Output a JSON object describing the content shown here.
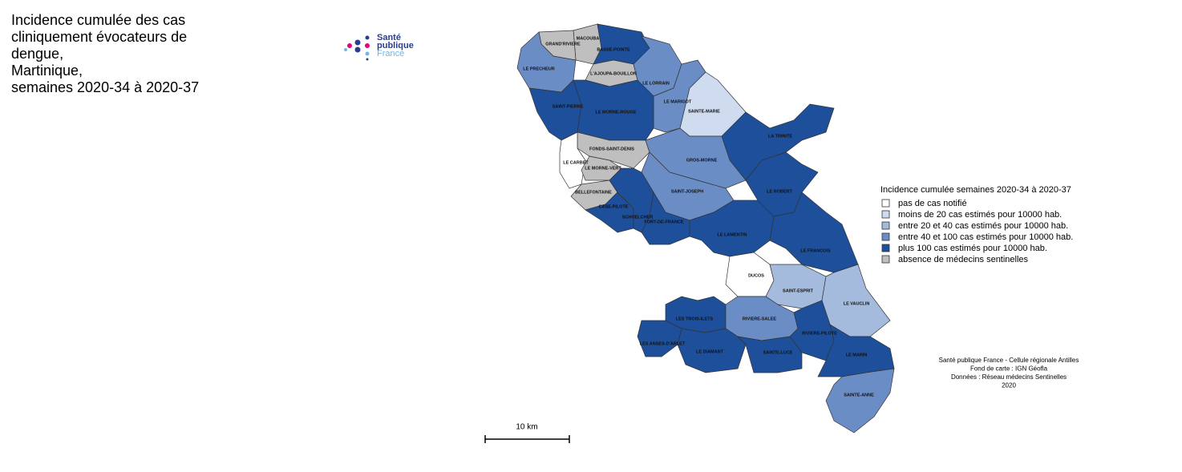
{
  "title_lines": [
    "Incidence cumulée des cas",
    "cliniquement évocateurs de",
    "dengue,",
    "Martinique,",
    "semaines 2020-34 à 2020-37"
  ],
  "logo": {
    "lines": [
      "Santé",
      "publique",
      "France"
    ]
  },
  "map": {
    "regions": [
      {
        "label": "MACOUBA",
        "color": "#bfbfbf"
      },
      {
        "label": "GRAND'RIVIERE",
        "color": "#bfbfbf"
      },
      {
        "label": "BASSE-POINTE",
        "color": "#1d4f9b"
      },
      {
        "label": "LE PRECHEUR",
        "color": "#6b8dc6"
      },
      {
        "label": "L'AJOUPA-BOUILLON",
        "color": "#bfbfbf"
      },
      {
        "label": "LE LORRAIN",
        "color": "#6b8dc6"
      },
      {
        "label": "LE MARIGOT",
        "color": "#6b8dc6"
      },
      {
        "label": "SAINTE-MARIE",
        "color": "#cfdbee"
      },
      {
        "label": "SAINT-PIERRE",
        "color": "#1d4f9b"
      },
      {
        "label": "LE MORNE-ROUGE",
        "color": "#1d4f9b"
      },
      {
        "label": "LA TRINITE",
        "color": "#1d4f9b"
      },
      {
        "label": "FONDS-SAINT-DENIS",
        "color": "#bfbfbf"
      },
      {
        "label": "LE CARBET",
        "color": "#ffffff"
      },
      {
        "label": "LE MORNE-VERT",
        "color": "#bfbfbf"
      },
      {
        "label": "GROS-MORNE",
        "color": "#6b8dc6"
      },
      {
        "label": "BELLEFONTAINE",
        "color": "#bfbfbf"
      },
      {
        "label": "LE ROBERT",
        "color": "#1d4f9b"
      },
      {
        "label": "SAINT-JOSEPH",
        "color": "#6b8dc6"
      },
      {
        "label": "CASE-PILOTE",
        "color": "#1d4f9b"
      },
      {
        "label": "SCHOELCHER",
        "color": "#1d4f9b"
      },
      {
        "label": "FORT-DE-FRANCE",
        "color": "#1d4f9b"
      },
      {
        "label": "LE LAMENTIN",
        "color": "#1d4f9b"
      },
      {
        "label": "LE FRANCOIS",
        "color": "#1d4f9b"
      },
      {
        "label": "DUCOS",
        "color": "#ffffff"
      },
      {
        "label": "SAINT-ESPRIT",
        "color": "#a4bbdd"
      },
      {
        "label": "LE VAUCLIN",
        "color": "#a4bbdd"
      },
      {
        "label": "LES TROIS-ILETS",
        "color": "#1d4f9b"
      },
      {
        "label": "RIVIERE-SALEE",
        "color": "#6b8dc6"
      },
      {
        "label": "RIVIERE-PILOTE",
        "color": "#1d4f9b"
      },
      {
        "label": "LES ANSES-D'ARLET",
        "color": "#1d4f9b"
      },
      {
        "label": "LE DIAMANT",
        "color": "#1d4f9b"
      },
      {
        "label": "SAINTE-LUCE",
        "color": "#1d4f9b"
      },
      {
        "label": "LE MARIN",
        "color": "#1d4f9b"
      },
      {
        "label": "SAINTE-ANNE",
        "color": "#6b8dc6"
      }
    ],
    "legend": {
      "title": "Incidence cumulée semaines 2020-34 à 2020-37",
      "items": [
        {
          "label": "pas de cas notifié",
          "color": "#ffffff"
        },
        {
          "label": "moins de 20 cas estimés pour 10000 hab.",
          "color": "#cfdbee"
        },
        {
          "label": "entre 20 et 40 cas estimés pour 10000 hab.",
          "color": "#a4bbdd"
        },
        {
          "label": "entre 40 et 100 cas estimés pour 10000 hab.",
          "color": "#6b8dc6"
        },
        {
          "label": "plus 100 cas estimés pour 10000 hab.",
          "color": "#1d4f9b"
        },
        {
          "label": "absence de médecins sentinelles",
          "color": "#bfbfbf"
        }
      ]
    },
    "scale_label": "10 km",
    "credits": [
      "Santé publique France - Cellule régionale Antilles",
      "Fond de carte : IGN Géofla",
      "Données : Réseau médecins Sentinelles",
      "2020"
    ]
  }
}
